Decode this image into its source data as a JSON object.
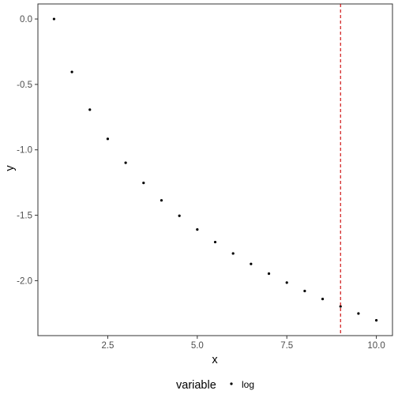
{
  "chart_data": {
    "type": "scatter",
    "xlabel": "x",
    "ylabel": "y",
    "xlim": [
      0.55,
      10.45
    ],
    "ylim": [
      -2.42,
      0.115
    ],
    "x_ticks": [
      2.5,
      5.0,
      7.5,
      10.0
    ],
    "x_tick_labels": [
      "2.5",
      "5.0",
      "7.5",
      "10.0"
    ],
    "y_ticks": [
      0.0,
      -0.5,
      -1.0,
      -1.5,
      -2.0
    ],
    "y_tick_labels": [
      "0.0",
      "-0.5",
      "-1.0",
      "-1.5",
      "-2.0"
    ],
    "grid": false,
    "legend_position": "bottom",
    "legend": {
      "title": "variable",
      "entries": [
        "log"
      ]
    },
    "series": [
      {
        "name": "log",
        "color": "#000000",
        "x": [
          1.0,
          1.5,
          2.0,
          2.5,
          3.0,
          3.5,
          4.0,
          4.5,
          5.0,
          5.5,
          6.0,
          6.5,
          7.0,
          7.5,
          8.0,
          8.5,
          9.0,
          9.5,
          10.0
        ],
        "y": [
          0.0,
          -0.405,
          -0.693,
          -0.916,
          -1.099,
          -1.253,
          -1.386,
          -1.504,
          -1.609,
          -1.705,
          -1.792,
          -1.872,
          -1.946,
          -2.015,
          -2.079,
          -2.14,
          -2.197,
          -2.251,
          -2.303
        ]
      }
    ],
    "reference_lines": [
      {
        "orientation": "vertical",
        "x": 9.0,
        "color": "#cc0000",
        "style": "dashed"
      }
    ]
  }
}
